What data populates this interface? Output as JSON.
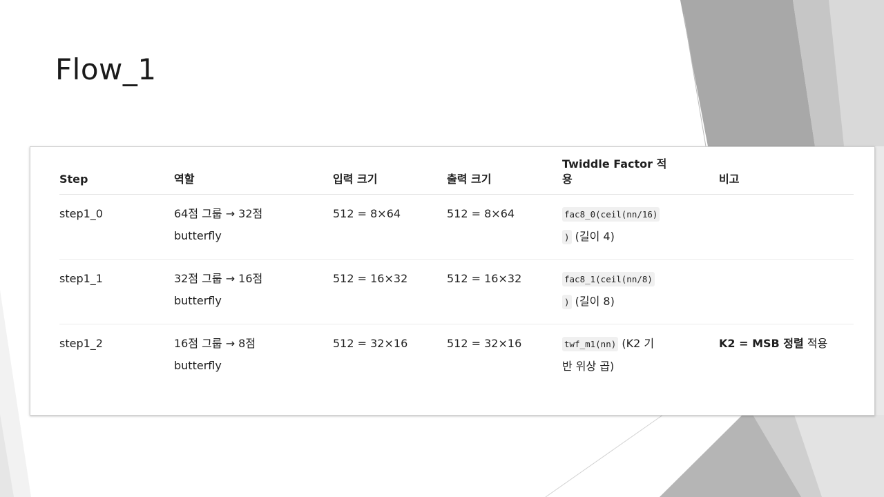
{
  "slide": {
    "title": "Flow_1"
  },
  "table": {
    "headers": {
      "step": "Step",
      "role": "역할",
      "input_size": "입력 크기",
      "output_size": "출력 크기",
      "twiddle_line1": "Twiddle Factor 적",
      "twiddle_line2": "용",
      "note": "비고"
    },
    "rows": [
      {
        "step": "step1_0",
        "role_line1": "64점 그룹 → 32점",
        "role_line2": "butterfly",
        "input_size": "512 = 8×64",
        "output_size": "512 = 8×64",
        "twiddle_code_1": "fac8_0(ceil(nn/16)",
        "twiddle_code_2": ")",
        "twiddle_text": " (길이 4)",
        "note_bold": "",
        "note_text": ""
      },
      {
        "step": "step1_1",
        "role_line1": "32점 그룹 → 16점",
        "role_line2": "butterfly",
        "input_size": "512 = 16×32",
        "output_size": "512 = 16×32",
        "twiddle_code_1": "fac8_1(ceil(nn/8)",
        "twiddle_code_2": ")",
        "twiddle_text": " (길이 8)",
        "note_bold": "",
        "note_text": ""
      },
      {
        "step": "step1_2",
        "role_line1": "16점 그룹 → 8점",
        "role_line2": "butterfly",
        "input_size": "512 = 32×16",
        "output_size": "512 = 32×16",
        "twiddle_code_1": "twf_m1(nn)",
        "twiddle_text_1": " (K2 기",
        "twiddle_text_2": "반 위상 곱)",
        "note_bold": "K2 = MSB 정렬",
        "note_text": " 적용"
      }
    ]
  },
  "colors": {
    "deco_dark": "#a6a6a6",
    "deco_mid": "#c4c4c4",
    "deco_light": "#dcdcdc",
    "deco_lighter": "#ececec"
  }
}
